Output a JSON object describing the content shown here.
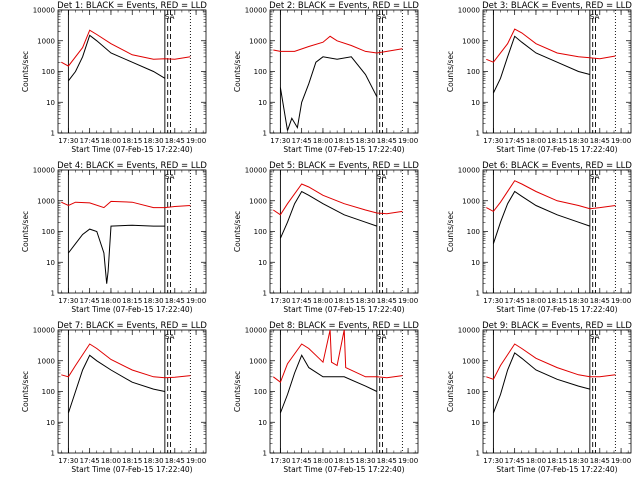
{
  "figure": {
    "panel_titles": [
      "Det 1: BLACK = Events, RED = LLD",
      "Det 2: BLACK = Events, RED = LLD",
      "Det 3: BLACK = Events, RED = LLD",
      "Det 4: BLACK = Events, RED = LLD",
      "Det 5: BLACK = Events, RED = LLD",
      "Det 6: BLACK = Events, RED = LLD",
      "Det 7: BLACK = Events, RED = LLD",
      "Det 8: BLACK = Events, RED = LLD",
      "Det 9: BLACK = Events, RED = LLD"
    ],
    "xlabel": "Start Time (07-Feb-15 17:22:40)",
    "ylabel": "Counts/sec",
    "annotation": "SA",
    "colors": {
      "events": "#000000",
      "lld": "#e00000",
      "axes": "#000000"
    }
  },
  "chart_data": {
    "type": "line",
    "layout": "3x3 grid",
    "x_unit": "time (HH:MM, 07-Feb-15)",
    "xlim": [
      "17:22:40",
      "19:07"
    ],
    "x_ticks": [
      "17:30",
      "17:45",
      "18:00",
      "18:15",
      "18:30",
      "18:45",
      "19:00"
    ],
    "y_scale": "log",
    "ylim": [
      1,
      10000
    ],
    "y_ticks": [
      "1",
      "10",
      "100",
      "1000",
      "10000"
    ],
    "markers": {
      "solid_vertical": [
        "17:30",
        "18:38"
      ],
      "dashed_vertical": [
        "18:40",
        "18:42"
      ],
      "dotted_vertical": [
        "18:56"
      ]
    },
    "panels": [
      {
        "series": [
          {
            "color": "black",
            "points": [
              [
                "17:30",
                50
              ],
              [
                "17:35",
                100
              ],
              [
                "17:40",
                300
              ],
              [
                "17:45",
                1500
              ],
              [
                "17:50",
                1000
              ],
              [
                "18:00",
                400
              ],
              [
                "18:15",
                200
              ],
              [
                "18:30",
                100
              ],
              [
                "18:38",
                60
              ]
            ]
          },
          {
            "color": "red",
            "points": [
              [
                "17:25",
                200
              ],
              [
                "17:30",
                150
              ],
              [
                "17:40",
                600
              ],
              [
                "17:45",
                2200
              ],
              [
                "17:50",
                1600
              ],
              [
                "18:00",
                800
              ],
              [
                "18:15",
                350
              ],
              [
                "18:30",
                250
              ],
              [
                "18:38",
                260
              ],
              [
                "18:45",
                250
              ],
              [
                "18:56",
                300
              ]
            ]
          }
        ]
      },
      {
        "series": [
          {
            "color": "black",
            "points": [
              [
                "17:30",
                30
              ],
              [
                "17:35",
                1.2
              ],
              [
                "17:38",
                3
              ],
              [
                "17:42",
                1.5
              ],
              [
                "17:45",
                10
              ],
              [
                "17:50",
                40
              ],
              [
                "17:55",
                200
              ],
              [
                "18:00",
                300
              ],
              [
                "18:10",
                250
              ],
              [
                "18:20",
                300
              ],
              [
                "18:30",
                80
              ],
              [
                "18:38",
                15
              ]
            ]
          },
          {
            "color": "red",
            "points": [
              [
                "17:25",
                500
              ],
              [
                "17:30",
                450
              ],
              [
                "17:40",
                450
              ],
              [
                "17:50",
                650
              ],
              [
                "18:00",
                900
              ],
              [
                "18:05",
                1400
              ],
              [
                "18:10",
                1000
              ],
              [
                "18:20",
                700
              ],
              [
                "18:30",
                450
              ],
              [
                "18:38",
                400
              ],
              [
                "18:45",
                450
              ],
              [
                "18:56",
                550
              ]
            ]
          }
        ]
      },
      {
        "series": [
          {
            "color": "black",
            "points": [
              [
                "17:30",
                20
              ],
              [
                "17:35",
                60
              ],
              [
                "17:40",
                300
              ],
              [
                "17:45",
                1400
              ],
              [
                "17:50",
                900
              ],
              [
                "18:00",
                400
              ],
              [
                "18:15",
                200
              ],
              [
                "18:30",
                100
              ],
              [
                "18:38",
                80
              ]
            ]
          },
          {
            "color": "red",
            "points": [
              [
                "17:25",
                250
              ],
              [
                "17:30",
                200
              ],
              [
                "17:40",
                800
              ],
              [
                "17:45",
                2400
              ],
              [
                "17:50",
                1800
              ],
              [
                "18:00",
                800
              ],
              [
                "18:15",
                400
              ],
              [
                "18:30",
                300
              ],
              [
                "18:38",
                280
              ],
              [
                "18:45",
                260
              ],
              [
                "18:56",
                320
              ]
            ]
          }
        ]
      },
      {
        "series": [
          {
            "color": "black",
            "points": [
              [
                "17:30",
                20
              ],
              [
                "17:35",
                40
              ],
              [
                "17:40",
                80
              ],
              [
                "17:45",
                120
              ],
              [
                "17:50",
                100
              ],
              [
                "17:55",
                20
              ],
              [
                "17:57",
                2
              ],
              [
                "17:58",
                5
              ],
              [
                "18:00",
                150
              ],
              [
                "18:15",
                160
              ],
              [
                "18:30",
                150
              ],
              [
                "18:38",
                150
              ]
            ]
          },
          {
            "color": "red",
            "points": [
              [
                "17:25",
                900
              ],
              [
                "17:30",
                700
              ],
              [
                "17:35",
                900
              ],
              [
                "17:45",
                850
              ],
              [
                "17:55",
                600
              ],
              [
                "18:00",
                950
              ],
              [
                "18:15",
                900
              ],
              [
                "18:30",
                600
              ],
              [
                "18:38",
                600
              ],
              [
                "18:45",
                650
              ],
              [
                "18:56",
                700
              ]
            ]
          }
        ]
      },
      {
        "series": [
          {
            "color": "black",
            "points": [
              [
                "17:30",
                60
              ],
              [
                "17:35",
                200
              ],
              [
                "17:40",
                800
              ],
              [
                "17:45",
                2000
              ],
              [
                "17:50",
                1500
              ],
              [
                "18:00",
                800
              ],
              [
                "18:15",
                350
              ],
              [
                "18:30",
                200
              ],
              [
                "18:38",
                150
              ]
            ]
          },
          {
            "color": "red",
            "points": [
              [
                "17:25",
                500
              ],
              [
                "17:30",
                350
              ],
              [
                "17:35",
                800
              ],
              [
                "17:45",
                3500
              ],
              [
                "17:50",
                2800
              ],
              [
                "18:00",
                1500
              ],
              [
                "18:15",
                800
              ],
              [
                "18:30",
                500
              ],
              [
                "18:38",
                400
              ],
              [
                "18:45",
                380
              ],
              [
                "18:56",
                450
              ]
            ]
          }
        ]
      },
      {
        "series": [
          {
            "color": "black",
            "points": [
              [
                "17:30",
                40
              ],
              [
                "17:35",
                200
              ],
              [
                "17:40",
                800
              ],
              [
                "17:45",
                2000
              ],
              [
                "17:50",
                1400
              ],
              [
                "18:00",
                700
              ],
              [
                "18:15",
                350
              ],
              [
                "18:30",
                200
              ],
              [
                "18:38",
                150
              ]
            ]
          },
          {
            "color": "red",
            "points": [
              [
                "17:25",
                600
              ],
              [
                "17:30",
                450
              ],
              [
                "17:35",
                900
              ],
              [
                "17:45",
                4500
              ],
              [
                "17:50",
                3500
              ],
              [
                "18:00",
                2000
              ],
              [
                "18:15",
                1000
              ],
              [
                "18:30",
                700
              ],
              [
                "18:38",
                550
              ],
              [
                "18:45",
                600
              ],
              [
                "18:56",
                700
              ]
            ]
          }
        ]
      },
      {
        "series": [
          {
            "color": "black",
            "points": [
              [
                "17:30",
                20
              ],
              [
                "17:35",
                100
              ],
              [
                "17:40",
                500
              ],
              [
                "17:45",
                1500
              ],
              [
                "17:50",
                1000
              ],
              [
                "18:00",
                500
              ],
              [
                "18:15",
                200
              ],
              [
                "18:30",
                120
              ],
              [
                "18:38",
                100
              ]
            ]
          },
          {
            "color": "red",
            "points": [
              [
                "17:25",
                350
              ],
              [
                "17:30",
                300
              ],
              [
                "17:35",
                700
              ],
              [
                "17:45",
                3500
              ],
              [
                "17:50",
                2500
              ],
              [
                "18:00",
                1100
              ],
              [
                "18:15",
                500
              ],
              [
                "18:30",
                300
              ],
              [
                "18:38",
                280
              ],
              [
                "18:45",
                290
              ],
              [
                "18:56",
                330
              ]
            ]
          }
        ]
      },
      {
        "series": [
          {
            "color": "black",
            "points": [
              [
                "17:30",
                20
              ],
              [
                "17:35",
                80
              ],
              [
                "17:40",
                400
              ],
              [
                "17:45",
                1500
              ],
              [
                "17:50",
                600
              ],
              [
                "18:00",
                300
              ],
              [
                "18:15",
                300
              ],
              [
                "18:30",
                150
              ],
              [
                "18:38",
                100
              ]
            ]
          },
          {
            "color": "red",
            "points": [
              [
                "17:25",
                300
              ],
              [
                "17:30",
                200
              ],
              [
                "17:35",
                800
              ],
              [
                "17:45",
                3500
              ],
              [
                "17:50",
                2500
              ],
              [
                "17:55",
                1500
              ],
              [
                "18:00",
                900
              ],
              [
                "18:05",
                10000
              ],
              [
                "18:06",
                900
              ],
              [
                "18:10",
                700
              ],
              [
                "18:15",
                10000
              ],
              [
                "18:16",
                600
              ],
              [
                "18:30",
                300
              ],
              [
                "18:38",
                300
              ],
              [
                "18:45",
                280
              ],
              [
                "18:56",
                330
              ]
            ]
          }
        ]
      },
      {
        "series": [
          {
            "color": "black",
            "points": [
              [
                "17:30",
                20
              ],
              [
                "17:35",
                80
              ],
              [
                "17:40",
                500
              ],
              [
                "17:45",
                1800
              ],
              [
                "17:50",
                1200
              ],
              [
                "18:00",
                500
              ],
              [
                "18:15",
                250
              ],
              [
                "18:30",
                150
              ],
              [
                "18:38",
                120
              ]
            ]
          },
          {
            "color": "red",
            "points": [
              [
                "17:25",
                300
              ],
              [
                "17:30",
                250
              ],
              [
                "17:35",
                700
              ],
              [
                "17:45",
                3500
              ],
              [
                "17:50",
                2500
              ],
              [
                "18:00",
                1200
              ],
              [
                "18:15",
                600
              ],
              [
                "18:30",
                350
              ],
              [
                "18:38",
                300
              ],
              [
                "18:45",
                300
              ],
              [
                "18:56",
                350
              ]
            ]
          }
        ]
      }
    ]
  }
}
